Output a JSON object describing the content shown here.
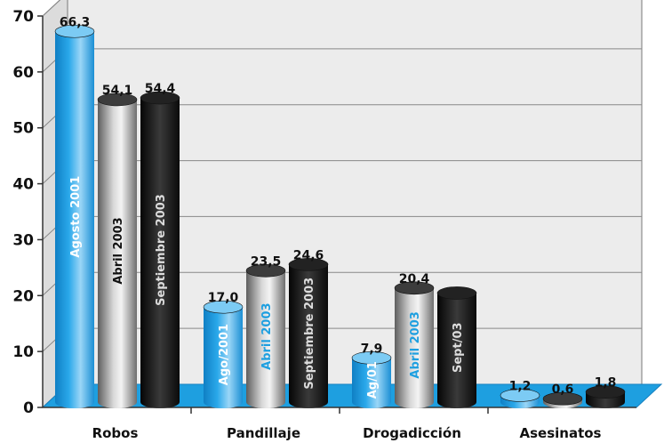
{
  "chart_data": {
    "type": "bar",
    "title": "",
    "xlabel": "",
    "ylabel": "",
    "ylim": [
      0,
      70
    ],
    "yticks": [
      0,
      10,
      20,
      30,
      40,
      50,
      60,
      70
    ],
    "grid": true,
    "categories": [
      "Robos",
      "Pandillaje",
      "Drogadicción",
      "Asesinatos"
    ],
    "series": [
      {
        "name": "Agosto 2001",
        "values": [
          66.3,
          17.0,
          7.9,
          1.2
        ],
        "color": "#1e9fe0"
      },
      {
        "name": "Abril 2003",
        "values": [
          54.1,
          23.5,
          20.4,
          0.6
        ],
        "color": "#9a9a9a"
      },
      {
        "name": "Septiembre 2003",
        "values": [
          54.4,
          24.6,
          null,
          1.8
        ],
        "color": "#1a1a1a"
      }
    ],
    "value_labels": [
      [
        "66,3",
        "54,1",
        "54,4"
      ],
      [
        "17,0",
        "23,5",
        "24,6"
      ],
      [
        "7,9",
        "20,4",
        ""
      ],
      [
        "1,2",
        "0,6",
        "1,8"
      ]
    ],
    "bar_labels": [
      [
        "Agosto 2001",
        "Abril 2003",
        "Septiembre 2003"
      ],
      [
        "Ago/2001",
        "Abril 2003",
        "Septiembre 2003"
      ],
      [
        "Ag/01",
        "Abril 2003",
        "Sept/03"
      ],
      [
        "",
        "",
        ""
      ]
    ],
    "floor_color": "#1e9fe0",
    "wall_color": "#ececec"
  }
}
